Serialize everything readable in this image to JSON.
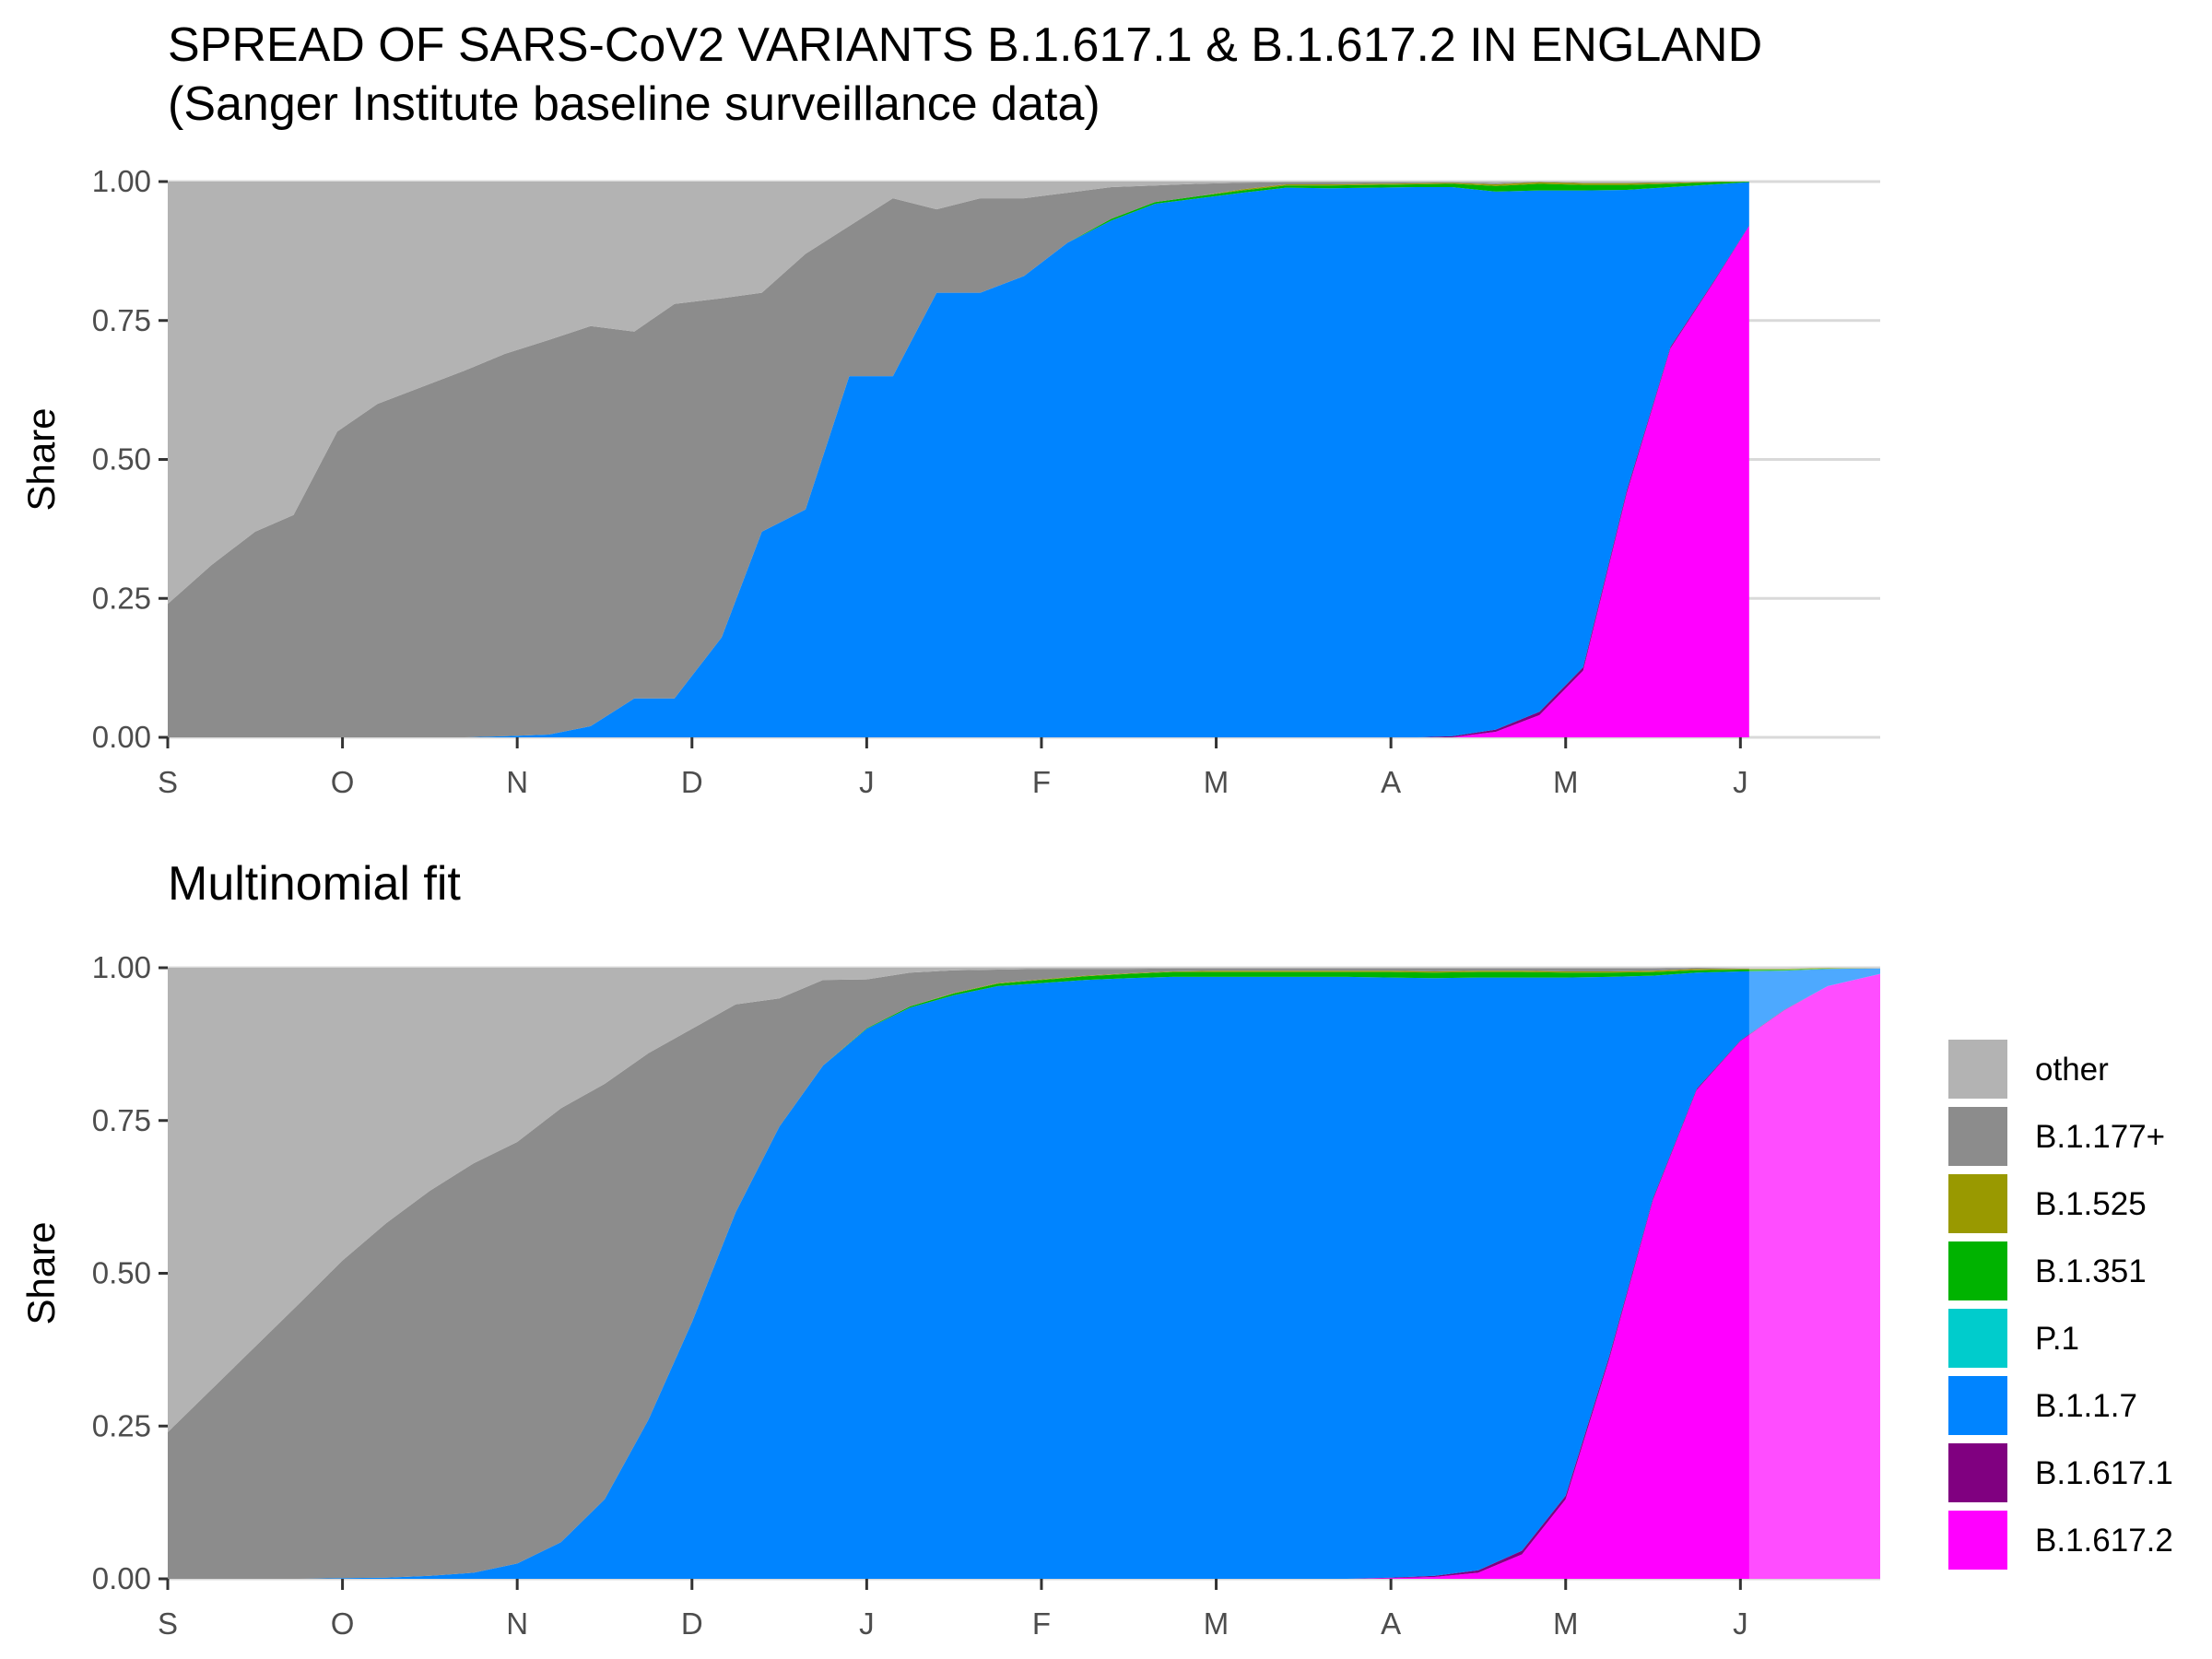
{
  "title": "SPREAD OF SARS-CoV2 VARIANTS B.1.617.1 & B.1.617.2 IN ENGLAND",
  "subtitle": "(Sanger Institute baseline surveillance data)",
  "chart_data": [
    {
      "type": "area",
      "stacked": "fill",
      "panel_title": "",
      "ylabel": "Share",
      "xlabel": "",
      "ylim": [
        0,
        1
      ],
      "yticks": [
        "0.00",
        "0.25",
        "0.50",
        "0.75",
        "1.00"
      ],
      "xlim": [
        0,
        9.8
      ],
      "xticks": [
        {
          "label": "S",
          "x": 0
        },
        {
          "label": "O",
          "x": 1
        },
        {
          "label": "N",
          "x": 2
        },
        {
          "label": "D",
          "x": 3
        },
        {
          "label": "J",
          "x": 4
        },
        {
          "label": "F",
          "x": 5
        },
        {
          "label": "M",
          "x": 6
        },
        {
          "label": "A",
          "x": 7
        },
        {
          "label": "M",
          "x": 8
        },
        {
          "label": "J",
          "x": 9
        }
      ],
      "grid": true,
      "x": [
        0,
        0.25,
        0.5,
        0.72,
        0.97,
        1.2,
        1.45,
        1.7,
        1.93,
        2.18,
        2.42,
        2.67,
        2.9,
        3.17,
        3.4,
        3.65,
        3.9,
        4.15,
        4.4,
        4.65,
        4.9,
        5.15,
        5.4,
        5.65,
        5.9,
        6.15,
        6.4,
        6.65,
        6.9,
        7.15,
        7.35,
        7.6,
        7.85,
        8.1,
        8.35,
        8.6,
        8.85,
        9.05
      ],
      "series": [
        {
          "name": "B.1.617.2",
          "values": [
            0,
            0,
            0,
            0,
            0,
            0,
            0,
            0,
            0,
            0,
            0,
            0,
            0,
            0,
            0,
            0,
            0,
            0,
            0,
            0,
            0,
            0,
            0,
            0,
            0,
            0,
            0,
            0,
            0,
            0,
            0,
            0.01,
            0.04,
            0.12,
            0.44,
            0.7,
            0.82,
            0.92
          ]
        },
        {
          "name": "B.1.617.1",
          "values": [
            0,
            0,
            0,
            0,
            0,
            0,
            0,
            0,
            0,
            0,
            0,
            0,
            0,
            0,
            0,
            0,
            0,
            0,
            0,
            0,
            0,
            0,
            0,
            0,
            0,
            0,
            0,
            0,
            0,
            0,
            0.002,
            0.004,
            0.006,
            0.006,
            0.005,
            0.003,
            0.002,
            0.001
          ]
        },
        {
          "name": "B.1.1.7",
          "values": [
            0,
            0,
            0,
            0,
            0,
            0,
            0,
            0,
            0.002,
            0.005,
            0.02,
            0.07,
            0.07,
            0.18,
            0.37,
            0.41,
            0.65,
            0.65,
            0.8,
            0.8,
            0.83,
            0.89,
            0.93,
            0.96,
            0.97,
            0.98,
            0.989,
            0.988,
            0.989,
            0.99,
            0.988,
            0.968,
            0.938,
            0.858,
            0.54,
            0.287,
            0.173,
            0.078
          ]
        },
        {
          "name": "P.1",
          "values": [
            0,
            0,
            0,
            0,
            0,
            0,
            0,
            0,
            0,
            0,
            0,
            0,
            0,
            0,
            0,
            0,
            0,
            0,
            0,
            0,
            0,
            0,
            0,
            0,
            0,
            0,
            0,
            0,
            0,
            0,
            0,
            0,
            0,
            0,
            0,
            0,
            0,
            0
          ]
        },
        {
          "name": "B.1.351",
          "values": [
            0,
            0,
            0,
            0,
            0,
            0,
            0,
            0,
            0,
            0,
            0,
            0,
            0,
            0,
            0,
            0,
            0,
            0,
            0,
            0,
            0,
            0,
            0.003,
            0.003,
            0.004,
            0.004,
            0.004,
            0.005,
            0.005,
            0.005,
            0.006,
            0.01,
            0.012,
            0.01,
            0.009,
            0.006,
            0.004,
            0.001
          ]
        },
        {
          "name": "B.1.525",
          "values": [
            0,
            0,
            0,
            0,
            0,
            0,
            0,
            0,
            0,
            0,
            0,
            0,
            0,
            0,
            0,
            0,
            0,
            0,
            0,
            0,
            0,
            0,
            0,
            0,
            0,
            0.002,
            0.002,
            0.002,
            0.002,
            0.002,
            0.002,
            0.003,
            0.003,
            0.003,
            0.003,
            0.002,
            0.001,
            0
          ]
        },
        {
          "name": "B.1.177+",
          "values": [
            0.24,
            0.31,
            0.37,
            0.4,
            0.55,
            0.6,
            0.63,
            0.66,
            0.688,
            0.71,
            0.72,
            0.66,
            0.71,
            0.61,
            0.43,
            0.46,
            0.27,
            0.32,
            0.15,
            0.17,
            0.14,
            0.09,
            0.057,
            0.03,
            0.022,
            0.012,
            0.004,
            0.004,
            0.003,
            0.002,
            0.001,
            0.002,
            0.001,
            0.001,
            0.001,
            0.001,
            0,
            0
          ]
        },
        {
          "name": "other",
          "values": [
            0.76,
            0.69,
            0.63,
            0.6,
            0.45,
            0.4,
            0.37,
            0.34,
            0.31,
            0.285,
            0.26,
            0.27,
            0.22,
            0.21,
            0.2,
            0.13,
            0.08,
            0.03,
            0.05,
            0.03,
            0.03,
            0.02,
            0.01,
            0.007,
            0.004,
            0.002,
            0.001,
            0.001,
            0.001,
            0.001,
            0.001,
            0.003,
            0.008,
            0.002,
            0.002,
            0.001,
            0,
            0
          ]
        }
      ]
    },
    {
      "type": "area",
      "stacked": "fill",
      "panel_title": "Multinomial fit",
      "ylabel": "Share",
      "xlabel": "",
      "ylim": [
        0,
        1
      ],
      "yticks": [
        "0.00",
        "0.25",
        "0.50",
        "0.75",
        "1.00"
      ],
      "xlim": [
        0,
        9.8
      ],
      "xticks": [
        {
          "label": "S",
          "x": 0
        },
        {
          "label": "O",
          "x": 1
        },
        {
          "label": "N",
          "x": 2
        },
        {
          "label": "D",
          "x": 3
        },
        {
          "label": "J",
          "x": 4
        },
        {
          "label": "F",
          "x": 5
        },
        {
          "label": "M",
          "x": 6
        },
        {
          "label": "A",
          "x": 7
        },
        {
          "label": "M",
          "x": 8
        },
        {
          "label": "J",
          "x": 9
        }
      ],
      "grid": true,
      "extrapolation_start_x": 9.05,
      "x": [
        0,
        0.25,
        0.5,
        0.75,
        1.0,
        1.25,
        1.5,
        1.75,
        2.0,
        2.25,
        2.5,
        2.75,
        3.0,
        3.25,
        3.5,
        3.75,
        4.0,
        4.25,
        4.5,
        4.75,
        5.0,
        5.25,
        5.5,
        5.75,
        6.0,
        6.25,
        6.5,
        6.75,
        7.0,
        7.25,
        7.5,
        7.75,
        8.0,
        8.25,
        8.5,
        8.75,
        9.0,
        9.25,
        9.5,
        9.8
      ],
      "series": [
        {
          "name": "B.1.617.2",
          "values": [
            0,
            0,
            0,
            0,
            0,
            0,
            0,
            0,
            0,
            0,
            0,
            0,
            0,
            0,
            0,
            0,
            0,
            0,
            0,
            0,
            0,
            0,
            0,
            0,
            0,
            0,
            0,
            0,
            0.001,
            0.003,
            0.01,
            0.04,
            0.13,
            0.36,
            0.62,
            0.8,
            0.88,
            0.93,
            0.97,
            0.99
          ]
        },
        {
          "name": "B.1.617.1",
          "values": [
            0,
            0,
            0,
            0,
            0,
            0,
            0,
            0,
            0,
            0,
            0,
            0,
            0,
            0,
            0,
            0,
            0,
            0,
            0,
            0,
            0,
            0,
            0,
            0,
            0,
            0,
            0,
            0,
            0.001,
            0.002,
            0.004,
            0.006,
            0.006,
            0.005,
            0.003,
            0.002,
            0.001,
            0.001,
            0,
            0
          ]
        },
        {
          "name": "B.1.1.7",
          "values": [
            0,
            0,
            0,
            0,
            0.001,
            0.002,
            0.005,
            0.01,
            0.025,
            0.06,
            0.13,
            0.26,
            0.42,
            0.6,
            0.74,
            0.84,
            0.9,
            0.935,
            0.955,
            0.97,
            0.975,
            0.98,
            0.983,
            0.985,
            0.985,
            0.985,
            0.985,
            0.985,
            0.982,
            0.978,
            0.97,
            0.938,
            0.848,
            0.62,
            0.364,
            0.19,
            0.113,
            0.064,
            0.028,
            0.009
          ]
        },
        {
          "name": "P.1",
          "values": [
            0,
            0,
            0,
            0,
            0,
            0,
            0,
            0,
            0,
            0,
            0,
            0,
            0,
            0,
            0,
            0,
            0,
            0,
            0,
            0,
            0,
            0,
            0,
            0,
            0,
            0,
            0,
            0,
            0,
            0,
            0,
            0,
            0,
            0,
            0,
            0,
            0,
            0,
            0,
            0
          ]
        },
        {
          "name": "B.1.351",
          "values": [
            0,
            0,
            0,
            0,
            0,
            0,
            0,
            0,
            0,
            0,
            0,
            0,
            0,
            0,
            0,
            0,
            0.001,
            0.002,
            0.003,
            0.004,
            0.005,
            0.006,
            0.007,
            0.008,
            0.008,
            0.008,
            0.008,
            0.008,
            0.009,
            0.009,
            0.009,
            0.009,
            0.008,
            0.007,
            0.006,
            0.004,
            0.003,
            0.002,
            0.001,
            0
          ]
        },
        {
          "name": "B.1.525",
          "values": [
            0,
            0,
            0,
            0,
            0,
            0,
            0,
            0,
            0,
            0,
            0,
            0,
            0,
            0,
            0,
            0,
            0,
            0,
            0.001,
            0.001,
            0.001,
            0.001,
            0.001,
            0.001,
            0.002,
            0.002,
            0.002,
            0.002,
            0.002,
            0.002,
            0.002,
            0.002,
            0.002,
            0.002,
            0.002,
            0.002,
            0.001,
            0.001,
            0.001,
            0
          ]
        },
        {
          "name": "B.1.177+",
          "values": [
            0.24,
            0.31,
            0.38,
            0.45,
            0.52,
            0.58,
            0.63,
            0.67,
            0.69,
            0.71,
            0.68,
            0.6,
            0.48,
            0.34,
            0.21,
            0.14,
            0.08,
            0.055,
            0.037,
            0.022,
            0.017,
            0.011,
            0.007,
            0.005,
            0.004,
            0.004,
            0.004,
            0.004,
            0.004,
            0.005,
            0.004,
            0.004,
            0.005,
            0.005,
            0.004,
            0.002,
            0.001,
            0.001,
            0,
            0
          ]
        },
        {
          "name": "other",
          "values": [
            0.76,
            0.69,
            0.62,
            0.55,
            0.479,
            0.418,
            0.365,
            0.32,
            0.285,
            0.23,
            0.19,
            0.14,
            0.1,
            0.06,
            0.05,
            0.02,
            0.019,
            0.008,
            0.004,
            0.003,
            0.002,
            0.002,
            0.002,
            0.001,
            0.001,
            0.001,
            0.001,
            0.001,
            0.001,
            0.001,
            0.001,
            0.001,
            0.001,
            0.001,
            0.001,
            0,
            0,
            0,
            0,
            0.001
          ]
        }
      ]
    }
  ],
  "legend": {
    "placement": "right",
    "items": [
      {
        "label": "other",
        "color": "#b3b3b3"
      },
      {
        "label": "B.1.177+",
        "color": "#8c8c8c"
      },
      {
        "label": "B.1.525",
        "color": "#999900"
      },
      {
        "label": "B.1.351",
        "color": "#00b300"
      },
      {
        "label": "P.1",
        "color": "#00cccc"
      },
      {
        "label": "B.1.1.7",
        "color": "#0084ff"
      },
      {
        "label": "B.1.617.1",
        "color": "#800080"
      },
      {
        "label": "B.1.617.2",
        "color": "#ff00ff"
      }
    ]
  }
}
